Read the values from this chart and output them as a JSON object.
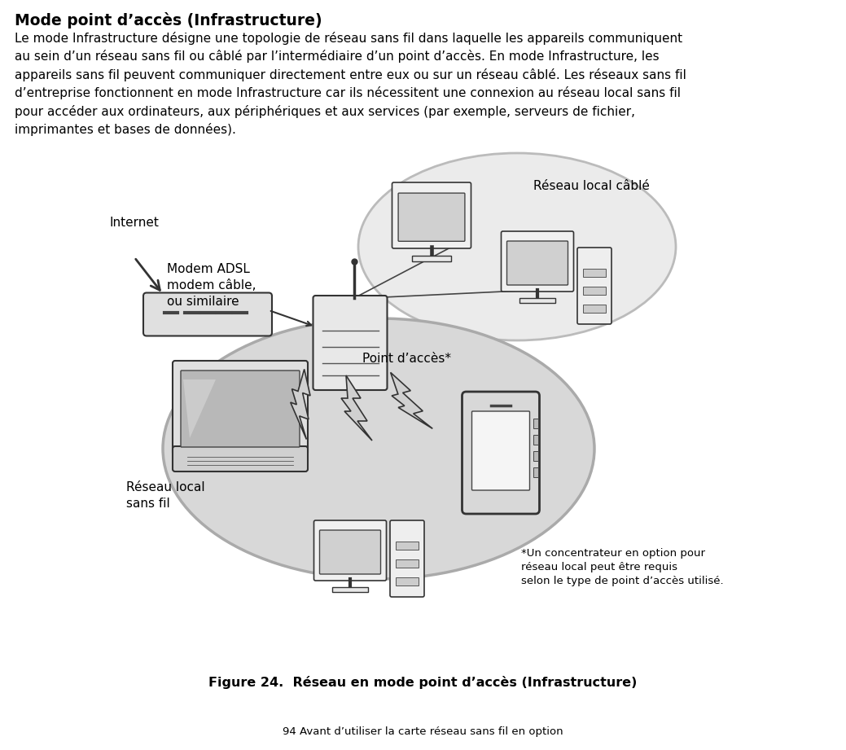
{
  "title": "Mode point d’accès (Infrastructure)",
  "body_text": "Le mode Infrastructure désigne une topologie de réseau sans fil dans laquelle les appareils communiquent\nau sein d’un réseau sans fil ou câblé par l’intermédiaire d’un point d’accès. En mode Infrastructure, les\nappareils sans fil peuvent communiquer directement entre eux ou sur un réseau câblé. Les réseaux sans fil\nd’entreprise fonctionnent en mode Infrastructure car ils nécessitent une connexion au réseau local sans fil\npour accéder aux ordinateurs, aux périphériques et aux services (par exemple, serveurs de fichier,\nimprimantes et bases de données).",
  "figure_caption": "Figure 24.  Réseau en mode point d’accès (Infrastructure)",
  "footer_text": "94 Avant d’utiliser la carte réseau sans fil en option",
  "label_internet": "Internet",
  "label_modem": "Modem ADSL\nmodem câble,\nou similaire",
  "label_reseau_cable": "Réseau local câblé",
  "label_point_acces": "Point d’accès*",
  "label_reseau_sans_fil": "Réseau local\nsans fil",
  "label_footnote": "*Un concentrateur en option pour\nréseau local peut être requis\nselon le type de point d’accès utilisé.",
  "bg_color": "#ffffff",
  "text_color": "#000000",
  "ellipse_wire_fill": "#ebebeb",
  "ellipse_wire_edge": "#bbbbbb",
  "ellipse_wireless_fill": "#d8d8d8",
  "ellipse_wireless_edge": "#aaaaaa"
}
